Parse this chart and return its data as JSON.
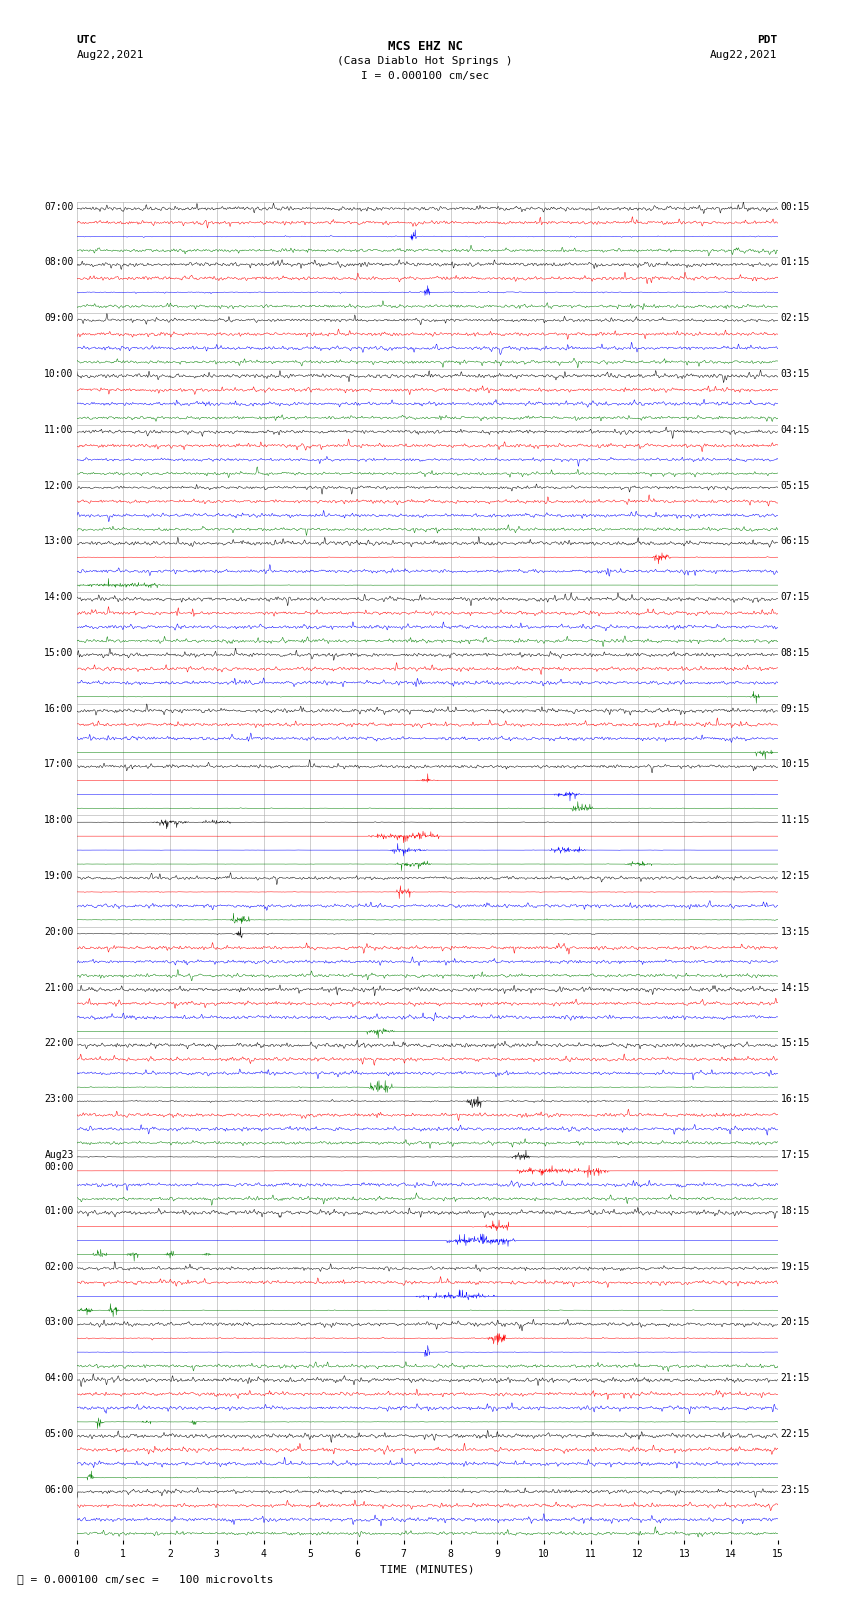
{
  "title_line1": "MCS EHZ NC",
  "title_line2": "(Casa Diablo Hot Springs )",
  "scale_label": "I = 0.000100 cm/sec",
  "footer_label": "= 0.000100 cm/sec =   100 microvolts",
  "left_header": "UTC",
  "left_date": "Aug22,2021",
  "right_header": "PDT",
  "right_date": "Aug22,2021",
  "xlabel": "TIME (MINUTES)",
  "utc_labels": [
    "07:00",
    "08:00",
    "09:00",
    "10:00",
    "11:00",
    "12:00",
    "13:00",
    "14:00",
    "15:00",
    "16:00",
    "17:00",
    "18:00",
    "19:00",
    "20:00",
    "21:00",
    "22:00",
    "23:00",
    "Aug23\n00:00",
    "01:00",
    "02:00",
    "03:00",
    "04:00",
    "05:00",
    "06:00"
  ],
  "pdt_labels": [
    "00:15",
    "01:15",
    "02:15",
    "03:15",
    "04:15",
    "05:15",
    "06:15",
    "07:15",
    "08:15",
    "09:15",
    "10:15",
    "11:15",
    "12:15",
    "13:15",
    "14:15",
    "15:15",
    "16:15",
    "17:15",
    "18:15",
    "19:15",
    "20:15",
    "21:15",
    "22:15",
    "23:15"
  ],
  "trace_colors": [
    "black",
    "red",
    "blue",
    "green"
  ],
  "num_rows": 24,
  "traces_per_row": 4,
  "minutes": 15,
  "bg_color": "white",
  "grid_color": "#aaaaaa",
  "font_size_title": 9,
  "font_size_labels": 7,
  "font_size_axis": 7,
  "seed": 42
}
